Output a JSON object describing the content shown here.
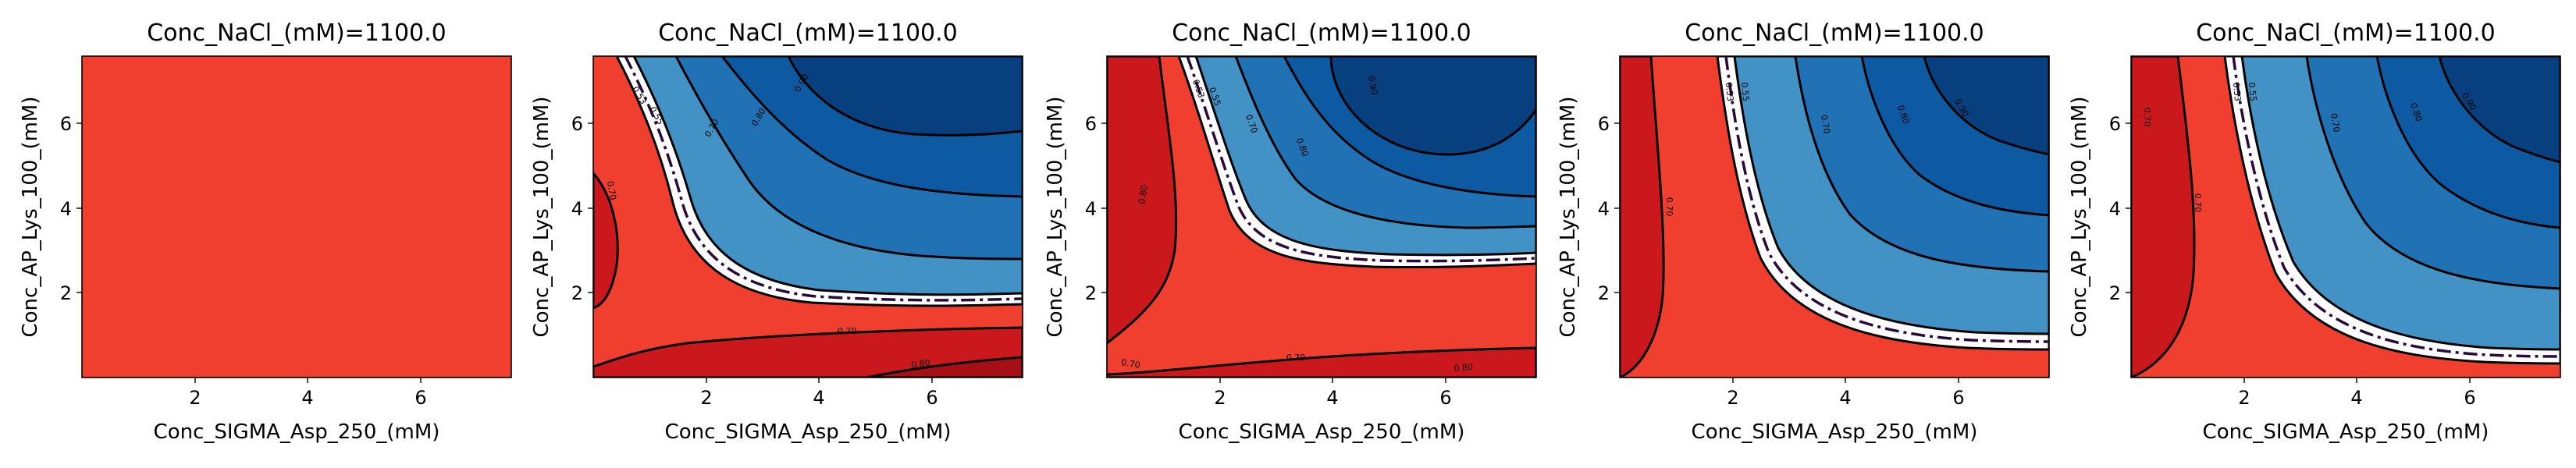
{
  "colors": {
    "red_light": "#f03f2f",
    "red_dark": "#cb181d",
    "red_darker": "#a50f15",
    "white": "#ffffff",
    "blue_1": "#4292c6",
    "blue_2": "#2171b5",
    "blue_3": "#0d5aa3",
    "blue_4": "#08407f",
    "contour_line": "#000000",
    "dashdot_line": "#2a0a3a"
  },
  "chart_data": [
    {
      "type": "contour",
      "title": "Conc_NaCl_(mM)=1100.0",
      "xlabel": "Conc_SIGMA_Asp_250_(mM)",
      "ylabel": "Conc_AP_Lys_100_(mM)",
      "xlim": [
        0.0,
        7.6
      ],
      "ylim": [
        0.0,
        7.6
      ],
      "xticks": [
        "2",
        "4",
        "6"
      ],
      "yticks": [
        "2",
        "4",
        "6"
      ],
      "contour_labels": [],
      "variant": "flat"
    },
    {
      "type": "contour",
      "title": "Conc_NaCl_(mM)=1100.0",
      "xlabel": "Conc_SIGMA_Asp_250_(mM)",
      "ylabel": "Conc_AP_Lys_100_(mM)",
      "xlim": [
        0.0,
        7.6
      ],
      "ylim": [
        0.0,
        7.6
      ],
      "xticks": [
        "2",
        "4",
        "6"
      ],
      "yticks": [
        "2",
        "4",
        "6"
      ],
      "contour_labels": [
        "0.90",
        "0.80",
        "0.70",
        "0.55",
        "0.53",
        "0.70",
        "0.70",
        "0.80"
      ],
      "variant": "b"
    },
    {
      "type": "contour",
      "title": "Conc_NaCl_(mM)=1100.0",
      "xlabel": "Conc_SIGMA_Asp_250_(mM)",
      "ylabel": "Conc_AP_Lys_100_(mM)",
      "xlim": [
        0.0,
        7.6
      ],
      "ylim": [
        0.0,
        7.6
      ],
      "xticks": [
        "2",
        "4",
        "6"
      ],
      "yticks": [
        "2",
        "4",
        "6"
      ],
      "contour_labels": [
        "0.90",
        "0.80",
        "0.70",
        "0.55",
        "0.53",
        "0.80",
        "0.70",
        "0.70",
        "0.80"
      ],
      "variant": "c"
    },
    {
      "type": "contour",
      "title": "Conc_NaCl_(mM)=1100.0",
      "xlabel": "Conc_SIGMA_Asp_250_(mM)",
      "ylabel": "Conc_AP_Lys_100_(mM)",
      "xlim": [
        0.0,
        7.6
      ],
      "ylim": [
        0.0,
        7.6
      ],
      "xticks": [
        "2",
        "4",
        "6"
      ],
      "yticks": [
        "2",
        "4",
        "6"
      ],
      "contour_labels": [
        "0.90",
        "0.80",
        "0.70",
        "0.55",
        "0.53",
        "0.70"
      ],
      "variant": "d"
    },
    {
      "type": "contour",
      "title": "Conc_NaCl_(mM)=1100.0",
      "xlabel": "Conc_SIGMA_Asp_250_(mM)",
      "ylabel": "Conc_AP_Lys_100_(mM)",
      "xlim": [
        0.0,
        7.6
      ],
      "ylim": [
        0.0,
        7.6
      ],
      "xticks": [
        "2",
        "4",
        "6"
      ],
      "yticks": [
        "2",
        "4",
        "6"
      ],
      "contour_labels": [
        "0.90",
        "0.80",
        "0.70",
        "0.55",
        "0.53",
        "0.70",
        "0.70"
      ],
      "variant": "e"
    }
  ]
}
